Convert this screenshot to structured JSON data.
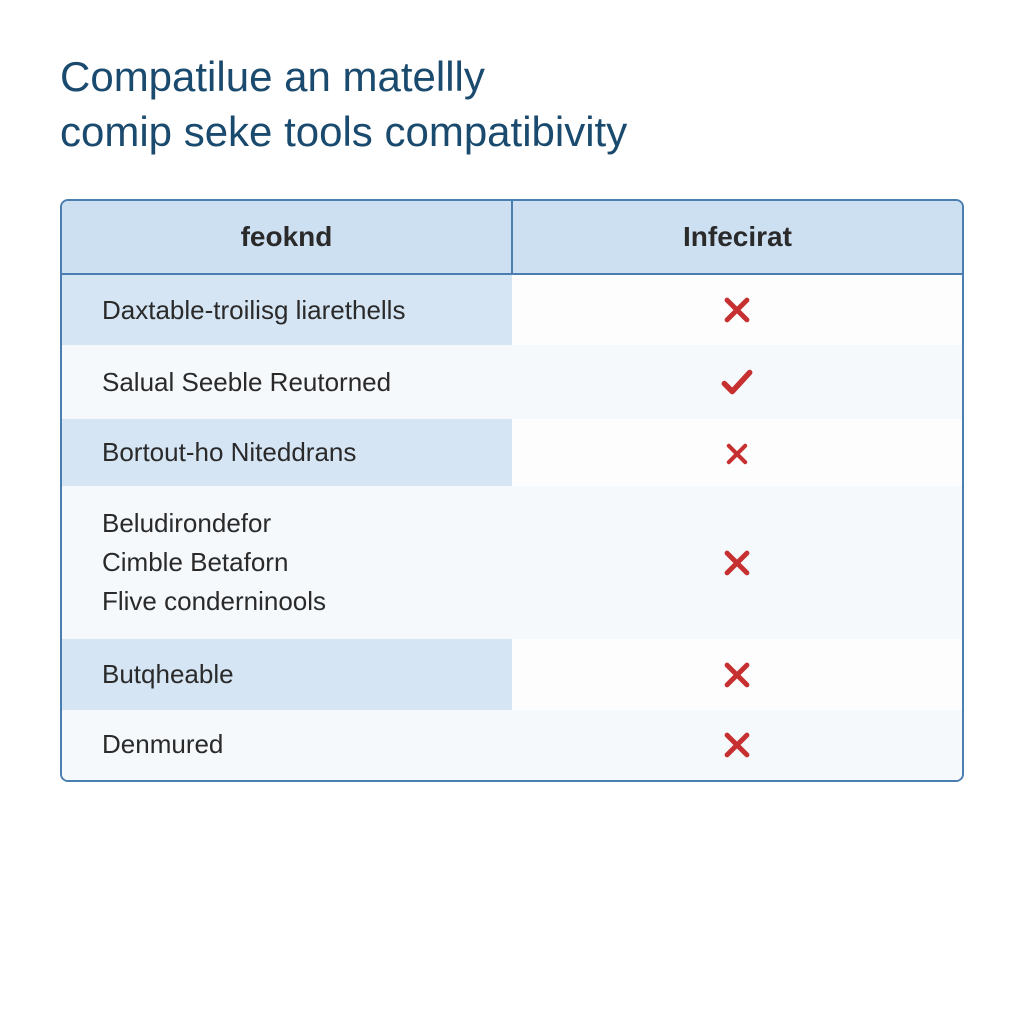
{
  "title": "Compatilue an matellly\ncomip seke tools compatibivity",
  "table": {
    "type": "table",
    "columns": [
      {
        "label": "feoknd",
        "width": 0.5,
        "align": "left"
      },
      {
        "label": "Infecirat",
        "width": 0.5,
        "align": "center"
      }
    ],
    "header_bg": "#cde0f2",
    "header_fontsize": 28,
    "header_fontweight": 700,
    "border_color": "#4a7eb0",
    "border_radius": 8,
    "row_odd_left_bg": "#d5e5f4",
    "row_even_left_bg": "#f5f9fc",
    "row_odd_right_bg": "#fdfdfd",
    "row_even_right_bg": "#f5f9fc",
    "cell_fontsize": 26,
    "cell_color": "#2a2a2a",
    "icon_check_color": "#c73030",
    "icon_cross_color": "#c73030",
    "rows": [
      {
        "label": "Daxtable-troilisg liarethells",
        "status": "cross",
        "icon_size": "large"
      },
      {
        "label": "Salual Seeble Reutorned",
        "status": "check",
        "icon_size": "large"
      },
      {
        "label": "Bortout-ho Niteddrans",
        "status": "cross",
        "icon_size": "small"
      },
      {
        "label": "Beludirondefor\nCimble Betaforn\nFlive conderninools",
        "status": "cross",
        "icon_size": "large"
      },
      {
        "label": "Butqheable",
        "status": "cross",
        "icon_size": "large"
      },
      {
        "label": "Denmured",
        "status": "cross",
        "icon_size": "large"
      }
    ]
  },
  "title_color": "#1a4a6e",
  "title_fontsize": 42,
  "background_color": "#ffffff"
}
